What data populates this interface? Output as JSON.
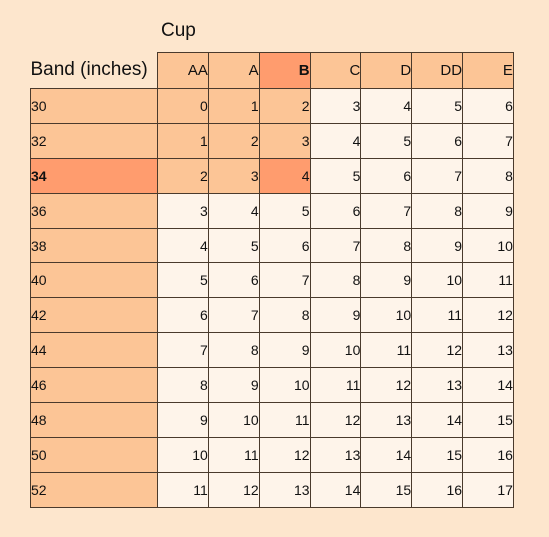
{
  "cup_label": "Cup",
  "band_label": "Band (inches)",
  "cups": [
    "AA",
    "A",
    "B",
    "C",
    "D",
    "DD",
    "E"
  ],
  "selected_cup": "B",
  "selected_band": "34",
  "colors": {
    "background": "#fde6cd",
    "header_fill": "#fcc596",
    "selected_fill": "#ff9c6e",
    "cell_fill": "#fef4ea"
  },
  "rows": [
    {
      "band": "30",
      "values": [
        "0",
        "1",
        "2",
        "3",
        "4",
        "5",
        "6"
      ]
    },
    {
      "band": "32",
      "values": [
        "1",
        "2",
        "3",
        "4",
        "5",
        "6",
        "7"
      ]
    },
    {
      "band": "34",
      "values": [
        "2",
        "3",
        "4",
        "5",
        "6",
        "7",
        "8"
      ]
    },
    {
      "band": "36",
      "values": [
        "3",
        "4",
        "5",
        "6",
        "7",
        "8",
        "9"
      ]
    },
    {
      "band": "38",
      "values": [
        "4",
        "5",
        "6",
        "7",
        "8",
        "9",
        "10"
      ]
    },
    {
      "band": "40",
      "values": [
        "5",
        "6",
        "7",
        "8",
        "9",
        "10",
        "11"
      ]
    },
    {
      "band": "42",
      "values": [
        "6",
        "7",
        "8",
        "9",
        "10",
        "11",
        "12"
      ]
    },
    {
      "band": "44",
      "values": [
        "7",
        "8",
        "9",
        "10",
        "11",
        "12",
        "13"
      ]
    },
    {
      "band": "46",
      "values": [
        "8",
        "9",
        "10",
        "11",
        "12",
        "13",
        "14"
      ]
    },
    {
      "band": "48",
      "values": [
        "9",
        "10",
        "11",
        "12",
        "13",
        "14",
        "15"
      ]
    },
    {
      "band": "50",
      "values": [
        "10",
        "11",
        "12",
        "13",
        "14",
        "15",
        "16"
      ]
    },
    {
      "band": "52",
      "values": [
        "11",
        "12",
        "13",
        "14",
        "15",
        "16",
        "17"
      ]
    }
  ]
}
